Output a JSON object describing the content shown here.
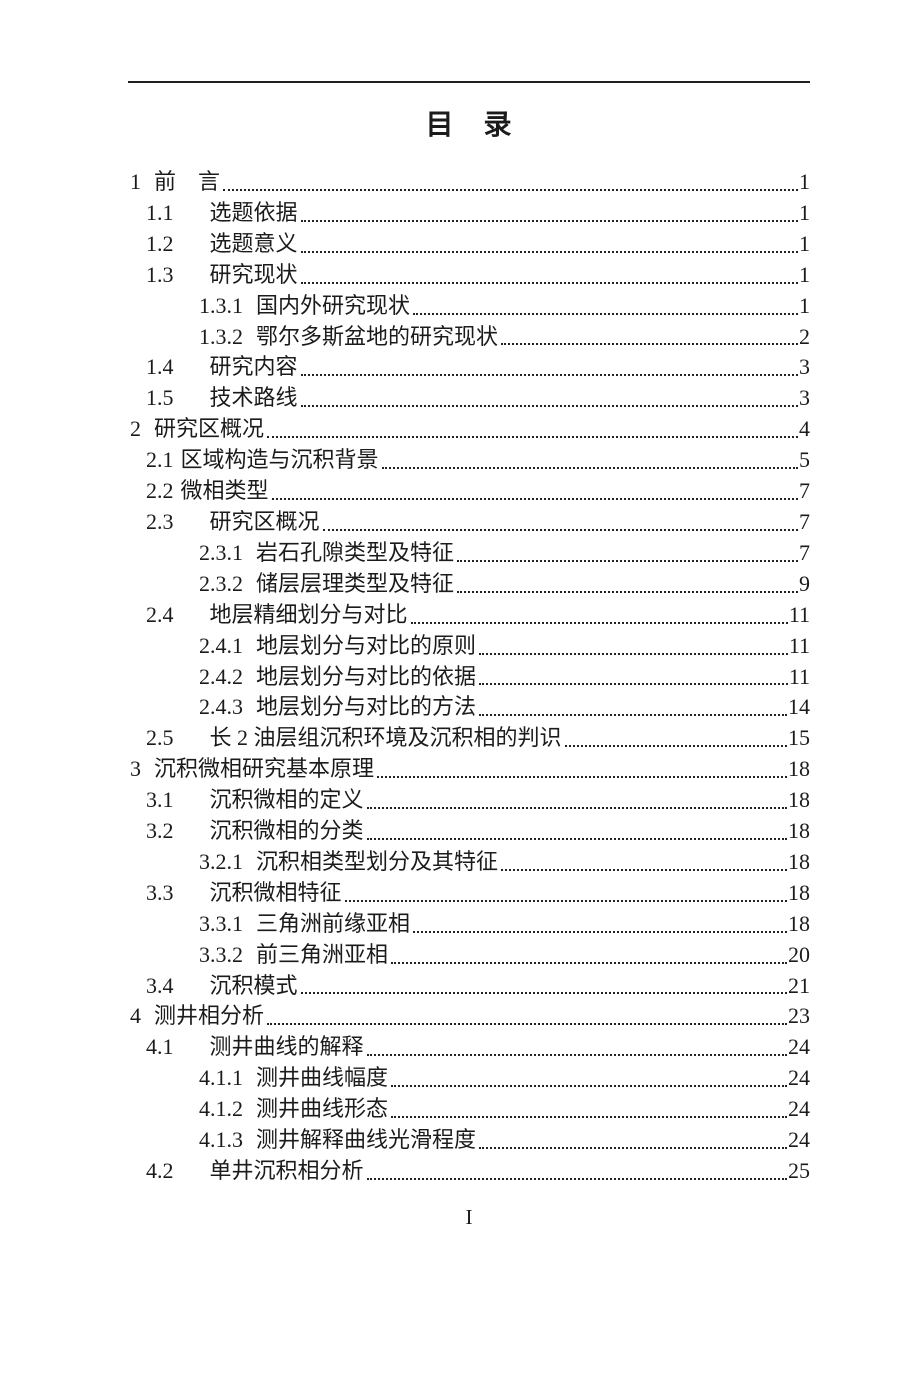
{
  "page": {
    "title": "目　录",
    "footer_page_number": "I"
  },
  "colors": {
    "text": "#1b1b1b",
    "rule": "#1f1f1f",
    "leader_dots": "#222222",
    "background": "#ffffff"
  },
  "toc": {
    "entries": [
      {
        "num": "1",
        "title": "前　言",
        "page": "1",
        "level": 1
      },
      {
        "num": "1.1",
        "title": "选题依据",
        "page": "1",
        "level": 2
      },
      {
        "num": "1.2",
        "title": "选题意义",
        "page": "1",
        "level": 2
      },
      {
        "num": "1.3",
        "title": "研究现状",
        "page": "1",
        "level": 2
      },
      {
        "num": "1.3.1",
        "title": "国内外研究现状",
        "page": "1",
        "level": 3
      },
      {
        "num": "1.3.2",
        "title": "鄂尔多斯盆地的研究现状",
        "page": "2",
        "level": 3
      },
      {
        "num": "1.4",
        "title": "研究内容",
        "page": "3",
        "level": 2
      },
      {
        "num": "1.5",
        "title": "技术路线",
        "page": "3",
        "level": 2
      },
      {
        "num": "2",
        "title": "研究区概况",
        "page": "4",
        "level": 1
      },
      {
        "num": "2.1",
        "title": "区域构造与沉积背景",
        "page": "5",
        "level": 2,
        "tight": true
      },
      {
        "num": "2.2",
        "title": "微相类型",
        "page": "7",
        "level": 2,
        "tight": true
      },
      {
        "num": "2.3",
        "title": "研究区概况",
        "page": "7",
        "level": 2
      },
      {
        "num": "2.3.1",
        "title": "岩石孔隙类型及特征",
        "page": "7",
        "level": 3
      },
      {
        "num": "2.3.2",
        "title": "储层层理类型及特征",
        "page": "9",
        "level": 3
      },
      {
        "num": "2.4",
        "title": "地层精细划分与对比",
        "page": "11",
        "level": 2
      },
      {
        "num": "2.4.1",
        "title": "地层划分与对比的原则",
        "page": "11",
        "level": 3
      },
      {
        "num": "2.4.2",
        "title": "地层划分与对比的依据",
        "page": "11",
        "level": 3
      },
      {
        "num": "2.4.3",
        "title": "地层划分与对比的方法",
        "page": "14",
        "level": 3
      },
      {
        "num": "2.5",
        "title": "长 2 油层组沉积环境及沉积相的判识",
        "page": "15",
        "level": 2
      },
      {
        "num": "3",
        "title": "沉积微相研究基本原理",
        "page": "18",
        "level": 1
      },
      {
        "num": "3.1",
        "title": "沉积微相的定义",
        "page": "18",
        "level": 2
      },
      {
        "num": "3.2",
        "title": "沉积微相的分类",
        "page": "18",
        "level": 2
      },
      {
        "num": "3.2.1",
        "title": "沉积相类型划分及其特征",
        "page": "18",
        "level": 3
      },
      {
        "num": "3.3",
        "title": "沉积微相特征",
        "page": "18",
        "level": 2
      },
      {
        "num": "3.3.1",
        "title": "三角洲前缘亚相",
        "page": "18",
        "level": 3
      },
      {
        "num": "3.3.2",
        "title": "前三角洲亚相",
        "page": "20",
        "level": 3
      },
      {
        "num": "3.4",
        "title": "沉积模式",
        "page": "21",
        "level": 2
      },
      {
        "num": "4",
        "title": "测井相分析",
        "page": "23",
        "level": 1
      },
      {
        "num": "4.1",
        "title": "测井曲线的解释",
        "page": "24",
        "level": 2
      },
      {
        "num": "4.1.1",
        "title": "测井曲线幅度",
        "page": "24",
        "level": 3
      },
      {
        "num": "4.1.2",
        "title": "测井曲线形态",
        "page": "24",
        "level": 3
      },
      {
        "num": "4.1.3",
        "title": "测井解释曲线光滑程度",
        "page": "24",
        "level": 3
      },
      {
        "num": "4.2",
        "title": "单井沉积相分析",
        "page": "25",
        "level": 2
      }
    ]
  }
}
